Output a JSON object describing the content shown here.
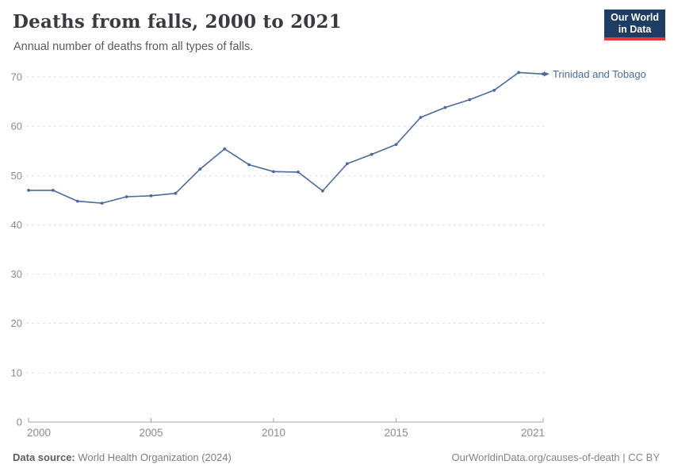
{
  "header": {
    "title": "Deaths from falls, 2000 to 2021",
    "subtitle": "Annual number of deaths from all types of falls.",
    "logo": {
      "line1": "Our World",
      "line2": "in Data"
    }
  },
  "chart_data": {
    "type": "line",
    "title": "Deaths from falls, 2000 to 2021",
    "subtitle": "Annual number of deaths from all types of falls.",
    "x": [
      2000,
      2001,
      2002,
      2003,
      2004,
      2005,
      2006,
      2007,
      2008,
      2009,
      2010,
      2011,
      2012,
      2013,
      2014,
      2015,
      2016,
      2017,
      2018,
      2019,
      2020,
      2021
    ],
    "series": [
      {
        "name": "Trinidad and Tobago",
        "color": "#4c6a9c",
        "values": [
          47,
          47,
          44.8,
          44.4,
          45.7,
          45.9,
          46.4,
          51.3,
          55.4,
          52.2,
          50.8,
          50.7,
          46.9,
          52.4,
          54.3,
          56.3,
          61.8,
          63.8,
          65.4,
          67.3,
          70.9,
          70.6
        ]
      }
    ],
    "xlabel": "",
    "ylabel": "",
    "ylim": [
      0,
      70
    ],
    "yticks": [
      0,
      10,
      20,
      30,
      40,
      50,
      60,
      70
    ],
    "xtick_labels": [
      2000,
      2005,
      2010,
      2015,
      2021
    ],
    "grid": "horizontal-dashed",
    "legend": "end-of-line-label"
  },
  "footer": {
    "datasource_label": "Data source:",
    "datasource_value": " World Health Organization (2024)",
    "link": "OurWorldinData.org/causes-of-death | CC BY"
  },
  "colors": {
    "line": "#4c6a9c",
    "grid": "#dedede",
    "axis": "#a3a3a3",
    "tick_text": "#8c8c8c",
    "logo_bg": "#1d3d63",
    "logo_accent": "#dc3e32"
  }
}
